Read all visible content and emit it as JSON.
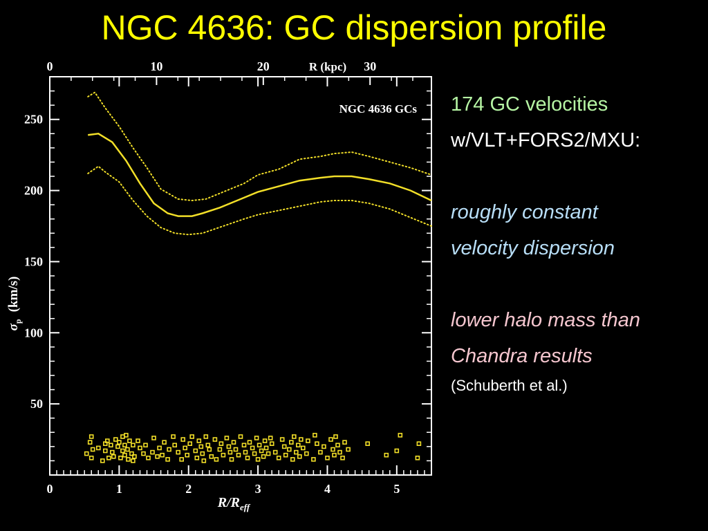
{
  "slide": {
    "title": "NGC 4636: GC dispersion profile"
  },
  "notes": {
    "line1": "174 GC velocities",
    "line2": "w/VLT+FORS2/MXU:",
    "line3": "roughly constant",
    "line4": "velocity dispersion",
    "line5": "lower halo mass than",
    "line6": "Chandra results",
    "line7": "(Schuberth et al.)"
  },
  "colors": {
    "background": "#000000",
    "title": "#ffff00",
    "curve": "#f2df28",
    "points": "#f2df28",
    "axes": "#ffffff",
    "note_green": "#b6f5a4",
    "note_blue": "#b8def7",
    "note_pink": "#f5c6cf"
  },
  "chart_data": {
    "type": "line",
    "annotation": "NGC 4636 GCs",
    "xlabel": "R/R_eff",
    "xlabel_main": "R/R",
    "xlabel_sub": "eff",
    "ylabel": "σ_p (km/s)",
    "ylabel_main": "σ",
    "ylabel_sub": "p",
    "ylabel_units": "(km/s)",
    "top_axis_label": "R (kpc)",
    "xlim": [
      0,
      5.5
    ],
    "ylim": [
      0,
      280
    ],
    "x_ticks": [
      "0",
      "1",
      "2",
      "3",
      "4",
      "5"
    ],
    "y_ticks": [
      "50",
      "100",
      "150",
      "200",
      "250"
    ],
    "top_ticks": [
      "0",
      "10",
      "20",
      "30"
    ],
    "top_axis_kpc_per_unit": 6.5,
    "grid": false,
    "series": [
      {
        "style": "solid",
        "x": [
          0.55,
          0.7,
          0.9,
          1.1,
          1.3,
          1.5,
          1.7,
          1.85,
          2.05,
          2.2,
          2.45,
          2.7,
          3.0,
          3.3,
          3.6,
          3.9,
          4.1,
          4.35,
          4.6,
          4.9,
          5.2,
          5.5
        ],
        "y": [
          239,
          240,
          234,
          221,
          205,
          191,
          184,
          182,
          182,
          184,
          188,
          193,
          199,
          203,
          207,
          209,
          210,
          210,
          208,
          205,
          200,
          193
        ]
      },
      {
        "style": "dotted",
        "x": [
          0.55,
          0.65,
          0.8,
          1.0,
          1.2,
          1.4,
          1.6,
          1.85,
          2.05,
          2.25,
          2.5,
          2.8,
          3.0,
          3.3,
          3.6,
          3.9,
          4.1,
          4.35,
          4.6,
          4.9,
          5.2,
          5.5
        ],
        "y": [
          266,
          269,
          258,
          245,
          230,
          216,
          201,
          194,
          193,
          194,
          199,
          205,
          211,
          215,
          222,
          224,
          226,
          227,
          224,
          220,
          216,
          211
        ]
      },
      {
        "style": "dotted",
        "x": [
          0.55,
          0.7,
          0.8,
          1.0,
          1.2,
          1.4,
          1.6,
          1.8,
          2.0,
          2.2,
          2.5,
          2.8,
          3.0,
          3.3,
          3.6,
          3.9,
          4.1,
          4.35,
          4.6,
          4.9,
          5.2,
          5.5
        ],
        "y": [
          212,
          217,
          213,
          206,
          193,
          182,
          174,
          170,
          169,
          170,
          175,
          180,
          183,
          186,
          189,
          192,
          193,
          193,
          191,
          187,
          181,
          175
        ]
      }
    ],
    "points_note": "open squares along the bottom mark the projected radii of the individual GCs",
    "points": {
      "x": [
        0.53,
        0.58,
        0.6,
        0.6,
        0.62,
        0.7,
        0.76,
        0.8,
        0.8,
        0.83,
        0.85,
        0.88,
        0.9,
        0.92,
        0.95,
        0.98,
        1.0,
        1.02,
        1.05,
        1.05,
        1.08,
        1.08,
        1.1,
        1.12,
        1.13,
        1.15,
        1.18,
        1.2,
        1.2,
        1.22,
        1.27,
        1.3,
        1.35,
        1.38,
        1.42,
        1.48,
        1.5,
        1.55,
        1.58,
        1.62,
        1.65,
        1.7,
        1.72,
        1.78,
        1.8,
        1.85,
        1.9,
        1.92,
        1.95,
        1.98,
        2.02,
        2.05,
        2.1,
        2.12,
        2.15,
        2.18,
        2.2,
        2.22,
        2.25,
        2.28,
        2.3,
        2.33,
        2.38,
        2.4,
        2.45,
        2.47,
        2.5,
        2.55,
        2.58,
        2.6,
        2.62,
        2.65,
        2.68,
        2.72,
        2.75,
        2.8,
        2.82,
        2.85,
        2.88,
        2.92,
        2.95,
        2.98,
        3.0,
        3.02,
        3.05,
        3.08,
        3.1,
        3.12,
        3.15,
        3.18,
        3.2,
        3.25,
        3.3,
        3.35,
        3.38,
        3.4,
        3.45,
        3.48,
        3.5,
        3.52,
        3.55,
        3.58,
        3.6,
        3.62,
        3.65,
        3.7,
        3.72,
        3.8,
        3.82,
        3.85,
        3.9,
        3.95,
        4.0,
        4.05,
        4.08,
        4.1,
        4.12,
        4.15,
        4.18,
        4.22,
        4.25,
        4.3,
        4.58,
        4.85,
        5.0,
        5.05,
        5.3,
        5.32
      ],
      "y": [
        15,
        23,
        27,
        12,
        18,
        19,
        10,
        22,
        17,
        24,
        12,
        21,
        16,
        13,
        25,
        20,
        23,
        12,
        27,
        17,
        14,
        21,
        28,
        18,
        11,
        24,
        15,
        21,
        10,
        13,
        24,
        19,
        15,
        21,
        12,
        16,
        26,
        13,
        19,
        14,
        23,
        11,
        18,
        27,
        21,
        16,
        11,
        25,
        19,
        14,
        22,
        27,
        17,
        12,
        24,
        20,
        15,
        10,
        27,
        21,
        18,
        13,
        25,
        11,
        18,
        22,
        14,
        26,
        20,
        16,
        11,
        23,
        18,
        14,
        27,
        21,
        16,
        12,
        23,
        19,
        15,
        26,
        11,
        21,
        17,
        13,
        24,
        19,
        15,
        26,
        22,
        16,
        12,
        25,
        20,
        14,
        18,
        23,
        11,
        27,
        16,
        21,
        13,
        25,
        19,
        15,
        24,
        11,
        28,
        22,
        16,
        20,
        12,
        25,
        18,
        14,
        27,
        21,
        16,
        12,
        23,
        18,
        22,
        14,
        17,
        28,
        12,
        22
      ]
    }
  }
}
